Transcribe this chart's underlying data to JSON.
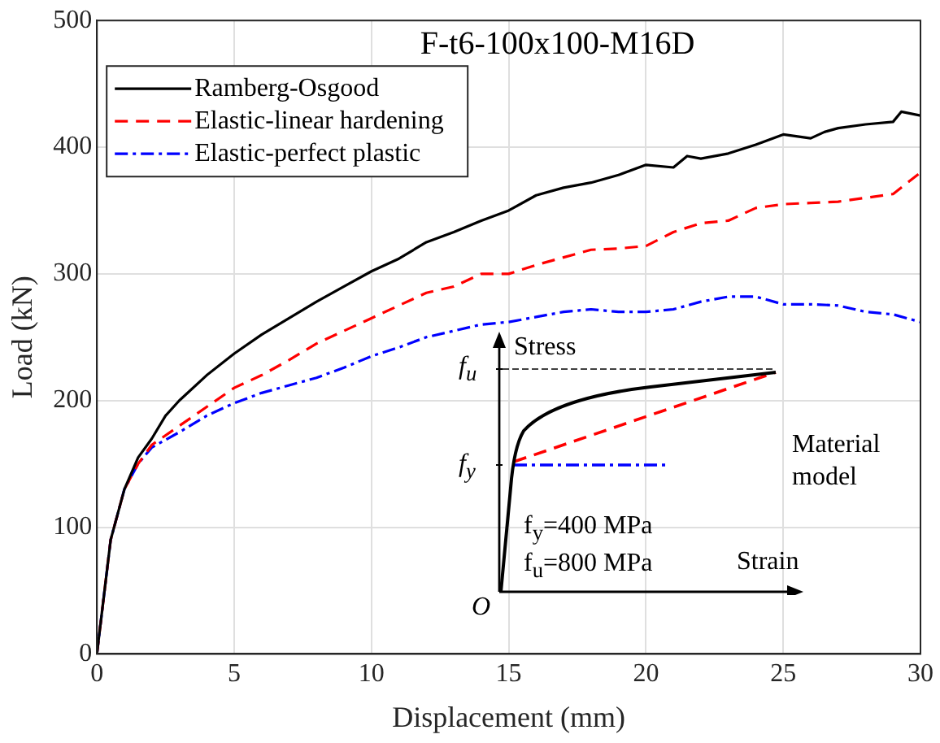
{
  "chart_data": {
    "type": "line",
    "title": "F-t6-100x100-M16D",
    "xlabel": "Displacement (mm)",
    "ylabel": "Load (kN)",
    "xlim": [
      0,
      30
    ],
    "xticks": [
      0,
      5,
      10,
      15,
      20,
      25,
      30
    ],
    "ylim": [
      0,
      500
    ],
    "yticks": [
      0,
      100,
      200,
      300,
      400,
      500
    ],
    "grid": true,
    "legend": "top left",
    "marker": "none",
    "series": [
      {
        "name": "Ramberg-Osgood",
        "color": "#000000",
        "line_style": "solid",
        "x": [
          0,
          0.5,
          1,
          1.5,
          2,
          2.5,
          3,
          4,
          5,
          6,
          7,
          8,
          9,
          10,
          11,
          12,
          13,
          14,
          15,
          16,
          17,
          18,
          19,
          20,
          21,
          21.5,
          22,
          23,
          24,
          25,
          26,
          26.5,
          27,
          28,
          29,
          29.3,
          30
        ],
        "values": [
          0,
          90,
          130,
          155,
          170,
          188,
          200,
          220,
          237,
          252,
          265,
          278,
          290,
          302,
          312,
          325,
          333,
          342,
          350,
          362,
          368,
          372,
          378,
          386,
          384,
          393,
          391,
          395,
          402,
          410,
          407,
          412,
          415,
          418,
          420,
          428,
          425
        ]
      },
      {
        "name": "Elastic-linear hardening",
        "color": "#ff0000",
        "line_style": "dashed",
        "x": [
          0,
          0.5,
          1,
          1.5,
          2,
          3,
          4,
          5,
          6,
          7,
          8,
          9,
          10,
          11,
          12,
          13,
          14,
          15,
          16,
          17,
          18,
          19,
          20,
          21,
          22,
          23,
          24,
          25,
          26,
          27,
          28,
          29,
          30
        ],
        "values": [
          0,
          90,
          130,
          150,
          165,
          180,
          195,
          210,
          220,
          232,
          245,
          255,
          265,
          275,
          285,
          290,
          300,
          300,
          307,
          313,
          319,
          320,
          322,
          333,
          340,
          342,
          352,
          355,
          356,
          357,
          360,
          363,
          380
        ]
      },
      {
        "name": "Elastic-perfect plastic",
        "color": "#0000ff",
        "line_style": "dashdot",
        "x": [
          0,
          0.5,
          1,
          1.5,
          2,
          3,
          4,
          5,
          6,
          7,
          8,
          9,
          10,
          11,
          12,
          13,
          14,
          15,
          16,
          17,
          18,
          19,
          20,
          21,
          22,
          23,
          24,
          25,
          26,
          27,
          28,
          29,
          30
        ],
        "values": [
          0,
          90,
          130,
          150,
          163,
          175,
          188,
          198,
          206,
          212,
          218,
          226,
          235,
          242,
          250,
          255,
          260,
          262,
          266,
          270,
          272,
          270,
          270,
          272,
          278,
          282,
          282,
          276,
          276,
          275,
          270,
          268,
          262
        ]
      }
    ],
    "annotations": [
      "Stress",
      "Strain",
      "f$_{u}$",
      "f$_{y}$",
      "O",
      "Material model",
      "f$_{y}$=400 MPa",
      "f$_{u}$=800 MPa"
    ]
  }
}
